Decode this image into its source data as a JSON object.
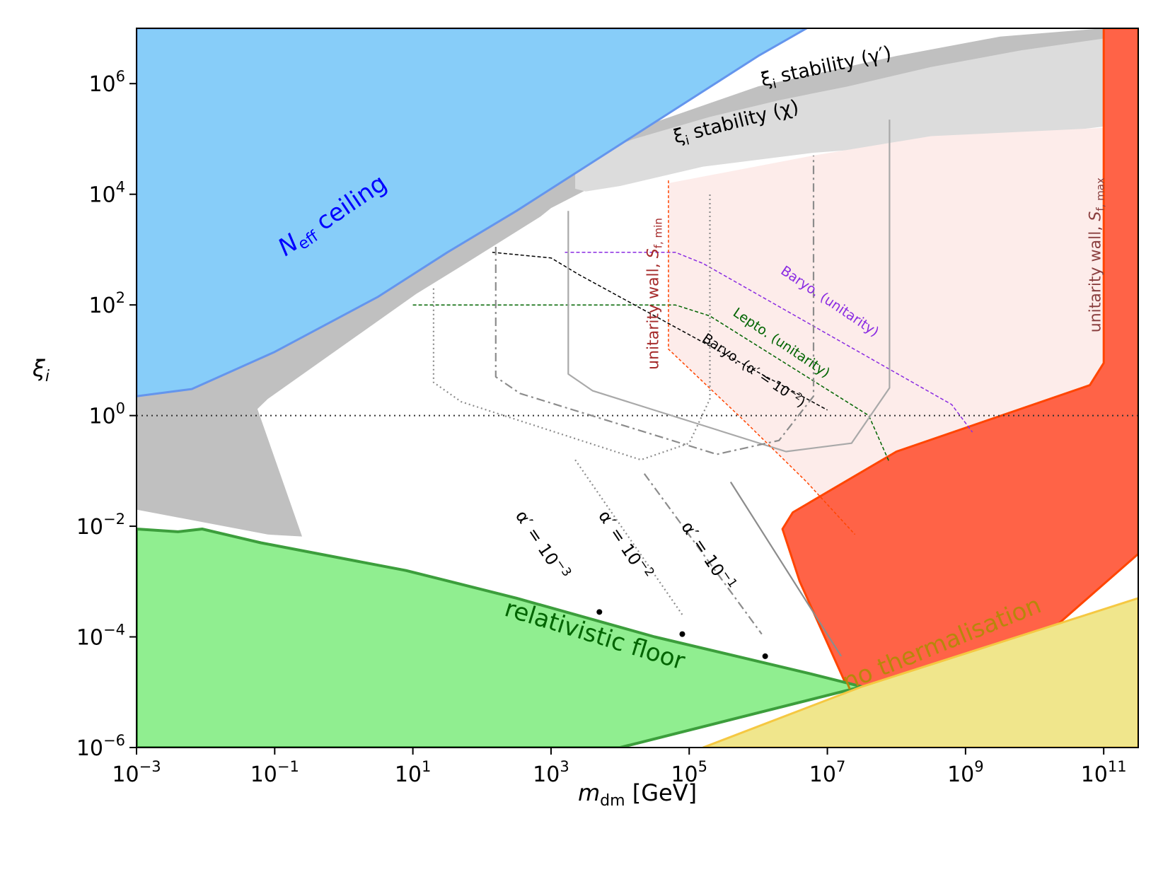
{
  "chart_data": {
    "type": "area",
    "title": "",
    "xscale": "log10",
    "yscale": "log10",
    "xlim": [
      -3,
      11.5
    ],
    "ylim": [
      -6,
      7
    ],
    "xticks": [
      {
        "exp": -3,
        "base": "10",
        "sup": "−3"
      },
      {
        "exp": -1,
        "base": "10",
        "sup": "−1"
      },
      {
        "exp": 1,
        "base": "10",
        "sup": "1"
      },
      {
        "exp": 3,
        "base": "10",
        "sup": "3"
      },
      {
        "exp": 5,
        "base": "10",
        "sup": "5"
      },
      {
        "exp": 7,
        "base": "10",
        "sup": "7"
      },
      {
        "exp": 9,
        "base": "10",
        "sup": "9"
      },
      {
        "exp": 11,
        "base": "10",
        "sup": "11"
      }
    ],
    "yticks": [
      {
        "exp": -6,
        "base": "10",
        "sup": "−6"
      },
      {
        "exp": -4,
        "base": "10",
        "sup": "−4"
      },
      {
        "exp": -2,
        "base": "10",
        "sup": "−2"
      },
      {
        "exp": 0,
        "base": "10",
        "sup": "0"
      },
      {
        "exp": 2,
        "base": "10",
        "sup": "2"
      },
      {
        "exp": 4,
        "base": "10",
        "sup": "4"
      },
      {
        "exp": 6,
        "base": "10",
        "sup": "6"
      }
    ],
    "xlabel": {
      "main": "m",
      "sub": "dm",
      "unit": " [GeV]"
    },
    "ylabel": {
      "main": "ξ",
      "sub": "i"
    },
    "colors": {
      "neff": "#87cdf9",
      "neff_edge": "#6495ed",
      "neff_text": "#0000ff",
      "stab_gamma": "#c0c0c0",
      "stab_chi": "#dcdcdc",
      "floor": "#90ee90",
      "floor_edge": "#3c9e3c",
      "floor_text": "#006400",
      "red": "#ff6347",
      "red_edge": "#ff4500",
      "pink": "#fdecea",
      "yellow": "#f0e68c",
      "yellow_edge": "#f5c842",
      "yellow_text": "#b8860b",
      "wall_text": "#a52a2a",
      "wall_text_max": "#8b4040",
      "baryo_unit": "#8a2be2",
      "lepto_unit": "#006400",
      "baryo_alpha": "#000000",
      "curve_grey": "#a9a9a9",
      "curve_grey_dash": "#8c8c8c"
    },
    "regions": [
      {
        "name": "stability_gamma",
        "points": [
          [
            -3,
            -1.7
          ],
          [
            -3,
            0.4
          ],
          [
            -1.2,
            1.3
          ],
          [
            0.4,
            2.3
          ],
          [
            1.8,
            3.4
          ],
          [
            3.1,
            4.5
          ],
          [
            4.5,
            5.3
          ],
          [
            6.0,
            5.95
          ],
          [
            8.0,
            6.5
          ],
          [
            9.5,
            6.85
          ],
          [
            11.0,
            7.0
          ],
          [
            11.5,
            7.0
          ],
          [
            11.5,
            -2.0
          ],
          [
            4.0,
            -2.0
          ],
          [
            2.3,
            -2.2
          ],
          [
            0.1,
            -2.2
          ],
          [
            -0.4,
            -2.2
          ],
          [
            -1.1,
            -2.15
          ],
          [
            -3,
            -1.7
          ]
        ]
      },
      {
        "name": "allowed_white",
        "points": [
          [
            -1.25,
            0.12
          ],
          [
            -1.1,
            0.3
          ],
          [
            1.05,
            2.2
          ],
          [
            1.7,
            2.7
          ],
          [
            2.85,
            3.6
          ],
          [
            3.0,
            3.75
          ],
          [
            3.7,
            4.2
          ],
          [
            5.5,
            4.8
          ],
          [
            11.5,
            6.2
          ],
          [
            11.5,
            -2.0
          ],
          [
            7.5,
            -2.0
          ],
          [
            6.5,
            -3.0
          ],
          [
            4.5,
            -5.0
          ],
          [
            -0.6,
            -2.2
          ],
          [
            -1.25,
            0.12
          ]
        ]
      },
      {
        "name": "stability_chi",
        "points": [
          [
            3.35,
            4.6
          ],
          [
            4.2,
            5.0
          ],
          [
            5.3,
            5.4
          ],
          [
            6.3,
            5.7
          ],
          [
            7.3,
            5.95
          ],
          [
            8.5,
            6.3
          ],
          [
            9.8,
            6.6
          ],
          [
            11.2,
            6.85
          ],
          [
            11.5,
            6.9
          ],
          [
            11.5,
            5.3
          ],
          [
            9.5,
            5.0
          ],
          [
            6.8,
            4.75
          ],
          [
            5.2,
            4.5
          ],
          [
            4.0,
            4.15
          ],
          [
            3.5,
            4.05
          ],
          [
            3.35,
            4.1
          ]
        ]
      },
      {
        "name": "pink_allowed",
        "points": [
          [
            4.7,
            4.2
          ],
          [
            6.8,
            4.7
          ],
          [
            8.5,
            5.05
          ],
          [
            11.0,
            5.2
          ],
          [
            11.0,
            0
          ],
          [
            9.3,
            -0.8
          ],
          [
            8.0,
            -1.8
          ],
          [
            7.4,
            -2.15
          ],
          [
            6.7,
            -1.2
          ],
          [
            5.8,
            -0.1
          ],
          [
            4.7,
            1.2
          ],
          [
            4.7,
            4.2
          ]
        ]
      },
      {
        "name": "red_wall",
        "points": [
          [
            11.0,
            7.0
          ],
          [
            11.5,
            7.0
          ],
          [
            11.5,
            -2.5
          ],
          [
            8.3,
            -6.0
          ],
          [
            7.5,
            -5.5
          ],
          [
            6.6,
            -3.0
          ],
          [
            6.35,
            -2.05
          ],
          [
            6.5,
            -1.75
          ],
          [
            8.0,
            -0.65
          ],
          [
            10.8,
            0.55
          ],
          [
            11.0,
            0.95
          ],
          [
            11.0,
            7.0
          ]
        ]
      },
      {
        "name": "neff_ceiling",
        "points": [
          [
            -3,
            7
          ],
          [
            -3,
            0.35
          ],
          [
            -2.2,
            0.48
          ],
          [
            -1.0,
            1.15
          ],
          [
            0.5,
            2.15
          ],
          [
            1.5,
            2.95
          ],
          [
            2.5,
            3.7
          ],
          [
            3.5,
            4.5
          ],
          [
            4.5,
            5.3
          ],
          [
            6.0,
            6.5
          ],
          [
            6.7,
            7.0
          ]
        ]
      },
      {
        "name": "relativistic_floor",
        "points": [
          [
            -3,
            -6
          ],
          [
            -3,
            -2.05
          ],
          [
            -2.4,
            -2.1
          ],
          [
            -2.05,
            -2.05
          ],
          [
            -1.2,
            -2.3
          ],
          [
            0.9,
            -2.8
          ],
          [
            2.5,
            -3.3
          ],
          [
            4.5,
            -4.0
          ],
          [
            6.7,
            -4.65
          ],
          [
            7.5,
            -4.9
          ],
          [
            4.0,
            -6.0
          ]
        ]
      },
      {
        "name": "no_thermalisation",
        "points": [
          [
            5.2,
            -6
          ],
          [
            7.5,
            -4.9
          ],
          [
            11.5,
            -3.3
          ],
          [
            11.5,
            -6
          ]
        ]
      }
    ],
    "lines": {
      "xi_equal_one": [
        [
          -3,
          0
        ],
        [
          11.5,
          0
        ]
      ],
      "baryo_unitarity": [
        [
          3.2,
          2.95
        ],
        [
          4.8,
          2.95
        ],
        [
          5.2,
          2.75
        ],
        [
          8.8,
          0.2
        ],
        [
          9.1,
          -0.3
        ]
      ],
      "lepto_unitarity": [
        [
          1,
          2
        ],
        [
          4.8,
          2
        ],
        [
          5.3,
          1.8
        ],
        [
          7.6,
          0.0
        ],
        [
          7.9,
          -0.85
        ]
      ],
      "baryo_alpha_1e-2": [
        [
          2.15,
          2.95
        ],
        [
          3.0,
          2.85
        ],
        [
          3.4,
          2.55
        ],
        [
          7.0,
          0.1
        ]
      ],
      "alpha_1e-1": [
        [
          3.25,
          3.7
        ],
        [
          3.25,
          0.75
        ],
        [
          3.6,
          0.45
        ],
        [
          6.4,
          -0.65
        ],
        [
          7.35,
          -0.5
        ],
        [
          7.9,
          0.5
        ],
        [
          7.9,
          5.35
        ]
      ],
      "alpha_1e-2": [
        [
          2.2,
          3.05
        ],
        [
          2.2,
          0.7
        ],
        [
          2.55,
          0.4
        ],
        [
          5.4,
          -0.7
        ],
        [
          6.3,
          -0.45
        ],
        [
          6.8,
          0.35
        ],
        [
          6.8,
          4.7
        ]
      ],
      "alpha_1e-3": [
        [
          1.3,
          2.3
        ],
        [
          1.3,
          0.6
        ],
        [
          1.7,
          0.25
        ],
        [
          4.3,
          -0.8
        ],
        [
          5.0,
          -0.5
        ],
        [
          5.3,
          0.3
        ],
        [
          5.3,
          4.0
        ]
      ],
      "alpha_1e-1_tail": [
        [
          5.6,
          -1.2
        ],
        [
          7.2,
          -4.35
        ]
      ],
      "alpha_1e-2_tail": [
        [
          4.35,
          -1.05
        ],
        [
          6.05,
          -3.95
        ]
      ],
      "alpha_1e-3_tail": [
        [
          3.35,
          -0.8
        ],
        [
          4.9,
          -3.6
        ]
      ]
    },
    "markers": [
      [
        3.7,
        -3.55
      ],
      [
        4.9,
        -3.95
      ],
      [
        6.1,
        -4.35
      ]
    ],
    "annotations": {
      "neff": {
        "main": "N",
        "sub": "eff",
        "rest": " ceiling",
        "at": [
          -0.1,
          3.5
        ]
      },
      "floor": {
        "text": "relativistic floor",
        "at": [
          3.6,
          -4.1
        ]
      },
      "no_therm": {
        "text": "no thermalisation",
        "at": [
          8.7,
          -4.25
        ]
      },
      "stab_gamma": {
        "main": "ξ",
        "sub": "i",
        "rest": " stability (γ′)",
        "at": [
          7.0,
          6.2
        ]
      },
      "stab_chi": {
        "main": "ξ",
        "sub": "i",
        "rest": " stability (χ)",
        "at": [
          5.7,
          5.2
        ]
      },
      "wall_min": {
        "main": "unitarity wall, ",
        "ital": "S",
        "sub": "f, min",
        "at": [
          4.55,
          2.2
        ]
      },
      "wall_max": {
        "main": "unitarity wall, ",
        "ital": "S",
        "sub": "f, max",
        "at": [
          10.95,
          2.9
        ]
      },
      "baryo_unitarity": {
        "text": "Baryo. (unitarity)",
        "at": [
          7.0,
          2.0
        ]
      },
      "lepto_unitarity": {
        "text": "Lepto. (unitarity)",
        "at": [
          6.3,
          1.25
        ]
      },
      "baryo_alpha": {
        "main": "Baryo. (α′ = 10",
        "sup": "−2",
        "close": ")",
        "at": [
          5.9,
          0.75
        ]
      },
      "alpha_1e-3": {
        "main": "α′ = 10",
        "sup": "−3",
        "at": [
          2.8,
          -2.4
        ]
      },
      "alpha_1e-2": {
        "main": "α′ = 10",
        "sup": "−2",
        "at": [
          4.0,
          -2.4
        ]
      },
      "alpha_1e-1": {
        "main": "α′ = 10",
        "sup": "−1",
        "at": [
          5.2,
          -2.6
        ]
      }
    }
  }
}
